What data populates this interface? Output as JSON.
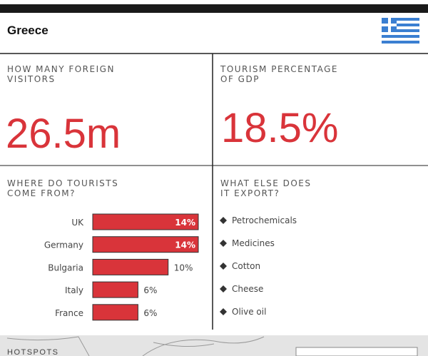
{
  "header": {
    "title": "Greece"
  },
  "stats": [
    {
      "label": [
        "HOW MANY FOREIGN",
        "VISITORS"
      ],
      "value": "26.5m"
    },
    {
      "label": [
        "TOURISM PERCENTAGE",
        "OF GDP"
      ],
      "value": "18.5%"
    }
  ],
  "chart_data": {
    "type": "bar",
    "orientation": "horizontal",
    "title": [
      "WHERE DO TOURISTS",
      "COME FROM?"
    ],
    "categories": [
      "UK",
      "Germany",
      "Bulgaria",
      "Italy",
      "France"
    ],
    "values": [
      14,
      14,
      10,
      6,
      6
    ],
    "value_labels": [
      "14%",
      "14%",
      "10%",
      "6%",
      "6%"
    ],
    "color": "#d9343a"
  },
  "exports": {
    "title": [
      "WHAT ELSE DOES",
      "IT EXPORT?"
    ],
    "items": [
      "Petrochemicals",
      "Medicines",
      "Cotton",
      "Cheese",
      "Olive oil"
    ]
  },
  "map": {
    "title": "HOTSPOTS"
  }
}
